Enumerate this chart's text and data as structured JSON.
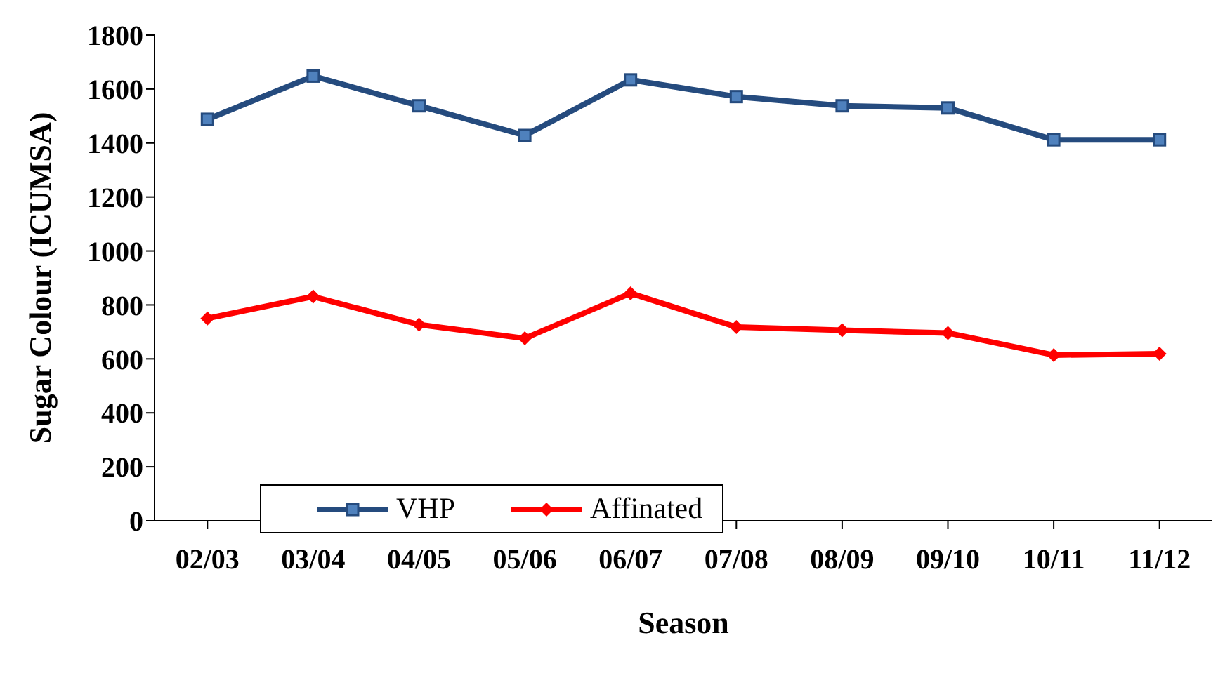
{
  "chart_data": {
    "type": "line",
    "xlabel": "Season",
    "ylabel": "Sugar Colour (ICUMSA)",
    "categories": [
      "02/03",
      "03/04",
      "04/05",
      "05/06",
      "06/07",
      "07/08",
      "08/09",
      "09/10",
      "10/11",
      "11/12"
    ],
    "series": [
      {
        "name": "VHP",
        "color": "#254b7e",
        "marker": "square",
        "values": [
          1488,
          1648,
          1538,
          1428,
          1634,
          1572,
          1538,
          1530,
          1412,
          1412
        ]
      },
      {
        "name": "Affinated",
        "color": "#ff0000",
        "marker": "diamond",
        "values": [
          750,
          831,
          727,
          676,
          843,
          718,
          706,
          696,
          614,
          619
        ]
      }
    ],
    "ylim": [
      0,
      1800
    ],
    "yticks": [
      0,
      200,
      400,
      600,
      800,
      1000,
      1200,
      1400,
      1600,
      1800
    ],
    "grid": false,
    "legend": "bottom left",
    "line_style": "solid"
  }
}
